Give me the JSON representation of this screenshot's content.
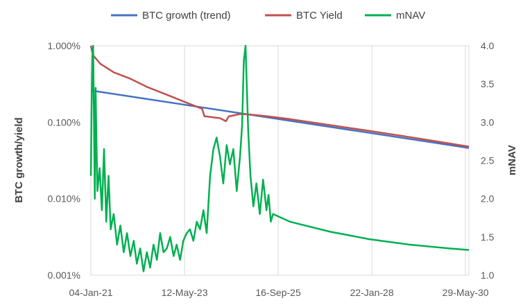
{
  "chart_data": {
    "type": "line",
    "legend_position": "top",
    "grid": "vertical",
    "x_axis": {
      "type": "date",
      "range": [
        "2021-01-04",
        "2030-06-29"
      ],
      "tick_labels": [
        "04-Jan-21",
        "12-May-23",
        "16-Sep-25",
        "22-Jan-28",
        "29-May-30"
      ],
      "tick_dates": [
        "2021-01-04",
        "2023-05-12",
        "2025-09-16",
        "2028-01-22",
        "2030-05-29"
      ]
    },
    "y_left": {
      "label": "BTC growth/yield",
      "scale": "log",
      "range": [
        1e-05,
        0.01
      ],
      "tick_labels": [
        "0.001%",
        "0.010%",
        "0.100%",
        "1.000%"
      ],
      "tick_values": [
        1e-05,
        0.0001,
        0.001,
        0.01
      ]
    },
    "y_right": {
      "label": "mNAV",
      "scale": "linear",
      "range": [
        1.0,
        4.0
      ],
      "tick_labels": [
        "1.0",
        "1.5",
        "2.0",
        "2.5",
        "3.0",
        "3.5",
        "4.0"
      ],
      "tick_values": [
        1.0,
        1.5,
        2.0,
        2.5,
        3.0,
        3.5,
        4.0
      ]
    },
    "series": [
      {
        "name": "BTC growth (trend)",
        "color": "#4472c4",
        "axis": "left",
        "x": [
          "2021-01-04",
          "2030-06-29"
        ],
        "y": [
          0.0026,
          0.00046
        ]
      },
      {
        "name": "BTC Yield",
        "color": "#c0504d",
        "axis": "left",
        "x": [
          "2021-01-04",
          "2021-01-25",
          "2021-04-01",
          "2021-08-01",
          "2022-01-01",
          "2022-06-01",
          "2023-01-01",
          "2023-06-01",
          "2023-10-20",
          "2023-11-10",
          "2024-04-01",
          "2024-05-25",
          "2024-06-20",
          "2024-10-01",
          "2025-01-01",
          "2025-06-01",
          "2026-01-01",
          "2027-01-01",
          "2028-01-01",
          "2029-01-01",
          "2030-06-29"
        ],
        "y": [
          0.01,
          0.0075,
          0.0058,
          0.0045,
          0.0037,
          0.0029,
          0.0022,
          0.0018,
          0.0015,
          0.0012,
          0.00113,
          0.00103,
          0.00119,
          0.00128,
          0.00126,
          0.0012,
          0.0011,
          0.00092,
          0.00077,
          0.00064,
          0.00048
        ]
      },
      {
        "name": "mNAV",
        "color": "#00b050",
        "axis": "right",
        "x": [
          "2021-01-04",
          "2021-01-10",
          "2021-01-18",
          "2021-01-25",
          "2021-02-09",
          "2021-02-16",
          "2021-02-24",
          "2021-03-05",
          "2021-03-25",
          "2021-04-15",
          "2021-05-05",
          "2021-05-25",
          "2021-06-15",
          "2021-07-05",
          "2021-08-01",
          "2021-09-01",
          "2021-10-01",
          "2021-11-01",
          "2021-12-01",
          "2022-01-01",
          "2022-02-01",
          "2022-03-01",
          "2022-04-01",
          "2022-05-01",
          "2022-06-01",
          "2022-07-01",
          "2022-08-01",
          "2022-09-01",
          "2022-10-01",
          "2022-11-01",
          "2022-12-01",
          "2023-01-01",
          "2023-02-01",
          "2023-03-01",
          "2023-04-01",
          "2023-05-01",
          "2023-06-01",
          "2023-07-01",
          "2023-08-01",
          "2023-09-01",
          "2023-10-01",
          "2023-11-01",
          "2023-12-01",
          "2024-01-01",
          "2024-02-01",
          "2024-03-01",
          "2024-04-01",
          "2024-05-01",
          "2024-06-01",
          "2024-07-01",
          "2024-08-01",
          "2024-09-01",
          "2024-10-01",
          "2024-10-20",
          "2024-11-05",
          "2024-11-21",
          "2024-12-15",
          "2025-01-05",
          "2025-02-01",
          "2025-03-01",
          "2025-04-01",
          "2025-05-01",
          "2025-06-01",
          "2025-06-20",
          "2025-07-10",
          "2025-07-31",
          "2026-01-01",
          "2027-01-01",
          "2028-01-01",
          "2029-01-01",
          "2030-01-01",
          "2030-06-29"
        ],
        "y": [
          2.3,
          3.1,
          3.85,
          4.0,
          2.0,
          3.45,
          2.8,
          2.1,
          2.4,
          1.85,
          2.65,
          1.7,
          2.3,
          1.6,
          1.8,
          1.4,
          1.65,
          1.3,
          1.55,
          1.25,
          1.45,
          1.15,
          1.35,
          1.05,
          1.3,
          1.1,
          1.4,
          1.2,
          1.55,
          1.3,
          1.35,
          1.5,
          1.25,
          1.4,
          1.2,
          1.45,
          1.55,
          1.6,
          1.45,
          1.7,
          1.6,
          1.85,
          1.55,
          2.3,
          2.65,
          2.8,
          2.55,
          2.2,
          2.7,
          2.45,
          2.65,
          2.1,
          2.55,
          2.95,
          3.8,
          4.0,
          2.9,
          2.3,
          1.9,
          2.2,
          1.8,
          2.25,
          1.85,
          2.05,
          1.7,
          1.8,
          1.7,
          1.57,
          1.47,
          1.4,
          1.35,
          1.33
        ]
      }
    ]
  }
}
